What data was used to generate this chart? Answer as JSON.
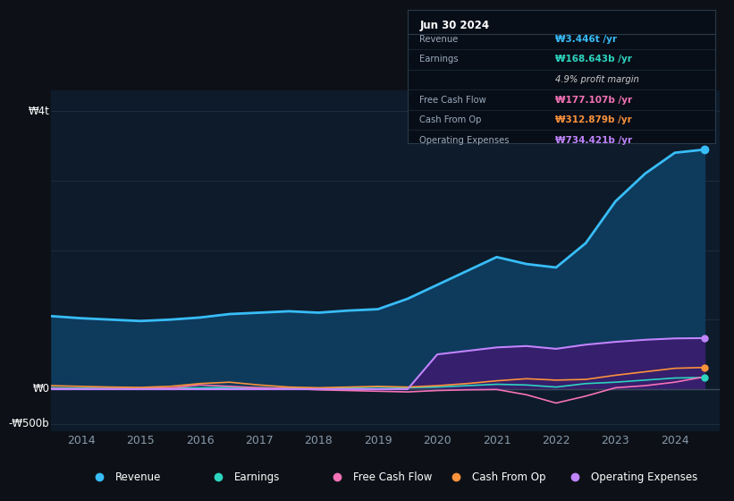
{
  "bg_color": "#0d1117",
  "plot_bg_color": "#0d1b2a",
  "ylabel_top": "₩4t",
  "ylabel_mid": "₩0",
  "ylabel_bot": "-₩500b",
  "xlim": [
    2013.5,
    2024.75
  ],
  "ylim": [
    -600,
    4300
  ],
  "grid_y": [
    -500,
    0,
    1000,
    2000,
    3000,
    4000
  ],
  "xticks": [
    2014,
    2015,
    2016,
    2017,
    2018,
    2019,
    2020,
    2021,
    2022,
    2023,
    2024
  ],
  "revenue_color": "#38bdf8",
  "earnings_color": "#2dd4bf",
  "fcf_color": "#f472b6",
  "cashop_color": "#fb923c",
  "opex_color": "#c084fc",
  "revenue_fill_color": "#0e3a5c",
  "opex_fill_color": "#3b1d6e",
  "legend": [
    {
      "label": "Revenue",
      "color": "#38bdf8"
    },
    {
      "label": "Earnings",
      "color": "#2dd4bf"
    },
    {
      "label": "Free Cash Flow",
      "color": "#f472b6"
    },
    {
      "label": "Cash From Op",
      "color": "#fb923c"
    },
    {
      "label": "Operating Expenses",
      "color": "#c084fc"
    }
  ],
  "box_date": "Jun 30 2024",
  "box_rows": [
    {
      "label": "Revenue",
      "value": "₩3.446t /yr",
      "value_color": "#38bdf8"
    },
    {
      "label": "Earnings",
      "value": "₩168.643b /yr",
      "value_color": "#2dd4bf"
    },
    {
      "label": "",
      "value": "4.9% profit margin",
      "value_color": "#cccccc"
    },
    {
      "label": "Free Cash Flow",
      "value": "₩177.107b /yr",
      "value_color": "#f472b6"
    },
    {
      "label": "Cash From Op",
      "value": "₩312.879b /yr",
      "value_color": "#fb923c"
    },
    {
      "label": "Operating Expenses",
      "value": "₩734.421b /yr",
      "value_color": "#c084fc"
    }
  ],
  "years": [
    2013.5,
    2014.0,
    2014.5,
    2015.0,
    2015.5,
    2016.0,
    2016.5,
    2017.0,
    2017.5,
    2018.0,
    2018.5,
    2019.0,
    2019.5,
    2020.0,
    2020.5,
    2021.0,
    2021.5,
    2022.0,
    2022.5,
    2023.0,
    2023.5,
    2024.0,
    2024.5
  ],
  "revenue": [
    1050,
    1020,
    1000,
    980,
    1000,
    1030,
    1080,
    1100,
    1120,
    1100,
    1130,
    1150,
    1300,
    1500,
    1700,
    1900,
    1800,
    1750,
    2100,
    2700,
    3100,
    3400,
    3446
  ],
  "earnings": [
    20,
    15,
    10,
    8,
    12,
    18,
    25,
    20,
    15,
    10,
    20,
    30,
    20,
    30,
    50,
    70,
    60,
    30,
    80,
    100,
    130,
    160,
    168
  ],
  "fcf": [
    10,
    5,
    8,
    10,
    15,
    60,
    40,
    20,
    10,
    -10,
    -20,
    -30,
    -40,
    -20,
    -10,
    -5,
    -80,
    -200,
    -100,
    20,
    50,
    100,
    177
  ],
  "cashop": [
    50,
    40,
    30,
    25,
    40,
    80,
    100,
    60,
    30,
    20,
    30,
    40,
    30,
    50,
    80,
    120,
    150,
    130,
    140,
    200,
    250,
    300,
    312
  ],
  "opex": [
    0,
    0,
    0,
    0,
    0,
    0,
    0,
    0,
    0,
    0,
    0,
    0,
    0,
    500,
    550,
    600,
    620,
    580,
    640,
    680,
    710,
    730,
    734
  ]
}
